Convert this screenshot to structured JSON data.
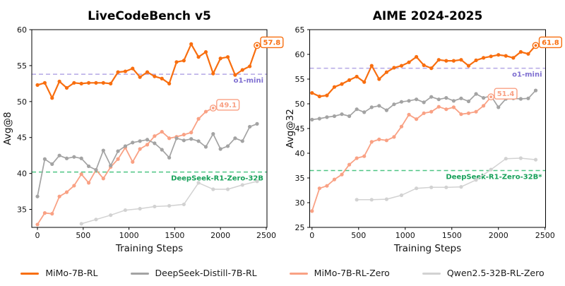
{
  "figure": {
    "background": "#ffffff"
  },
  "legend": {
    "items": [
      {
        "label": "MiMo-7B-RL",
        "color": "#F86E0F"
      },
      {
        "label": "DeepSeek-Distill-7B-RL",
        "color": "#A3A3A3"
      },
      {
        "label": "MiMo-7B-RL-Zero",
        "color": "#F9A184"
      },
      {
        "label": "Qwen2.5-32B-RL-Zero",
        "color": "#D2D2D2"
      }
    ]
  },
  "chart_data": [
    {
      "type": "line",
      "title": "LiveCodeBench v5",
      "xlabel": "Training Steps",
      "ylabel": "Avg@8",
      "xlim": [
        -62,
        2508
      ],
      "ylim": [
        32.5,
        60
      ],
      "xticks": [
        0,
        500,
        1000,
        1500,
        2000,
        2500
      ],
      "yticks": [
        35,
        40,
        45,
        50,
        55,
        60
      ],
      "grid": false,
      "hlines": [
        {
          "label": "o1-mini",
          "value": 53.8,
          "color": "#B4A7E5",
          "label_color": "#7F6FD1"
        },
        {
          "label": "DeepSeek-R1-Zero-32B",
          "value": 40.2,
          "color": "#4EC584",
          "label_color": "#18A15A"
        }
      ],
      "series": [
        {
          "name": "MiMo-7B-RL",
          "color": "#F86E0F",
          "lw": 2.2,
          "end_label": "57.8",
          "x": [
            0,
            80,
            160,
            240,
            320,
            400,
            480,
            560,
            640,
            720,
            800,
            880,
            960,
            1040,
            1120,
            1200,
            1280,
            1360,
            1440,
            1520,
            1600,
            1680,
            1760,
            1840,
            1920,
            2000,
            2080,
            2160,
            2240,
            2320,
            2400
          ],
          "y": [
            52.3,
            52.6,
            50.5,
            52.8,
            51.9,
            52.6,
            52.5,
            52.6,
            52.6,
            52.6,
            52.5,
            54.1,
            54.2,
            54.6,
            53.4,
            54.1,
            53.5,
            53.2,
            52.5,
            55.5,
            55.7,
            58.0,
            56.2,
            56.9,
            53.9,
            56.0,
            56.2,
            53.7,
            54.4,
            54.9,
            57.8
          ]
        },
        {
          "name": "DeepSeek-Distill-7B-RL",
          "color": "#A3A3A3",
          "lw": 1.7,
          "end_label": null,
          "x": [
            0,
            80,
            160,
            240,
            320,
            400,
            480,
            560,
            640,
            720,
            800,
            880,
            960,
            1040,
            1120,
            1200,
            1280,
            1360,
            1440,
            1520,
            1600,
            1680,
            1760,
            1840,
            1920,
            2000,
            2080,
            2160,
            2240,
            2320,
            2400
          ],
          "y": [
            36.8,
            42.0,
            41.3,
            42.5,
            42.1,
            42.3,
            42.1,
            41.0,
            40.5,
            43.2,
            41.1,
            43.1,
            43.8,
            44.3,
            44.5,
            44.7,
            44.2,
            43.3,
            42.2,
            44.9,
            44.6,
            44.8,
            44.5,
            43.7,
            45.5,
            43.4,
            43.8,
            44.9,
            44.5,
            46.5,
            46.9
          ]
        },
        {
          "name": "MiMo-7B-RL-Zero",
          "color": "#F9A184",
          "lw": 1.8,
          "end_label": "49.1",
          "x": [
            0,
            80,
            160,
            240,
            320,
            400,
            480,
            560,
            640,
            720,
            800,
            880,
            960,
            1040,
            1120,
            1200,
            1280,
            1360,
            1440,
            1520,
            1600,
            1680,
            1760,
            1840,
            1920
          ],
          "y": [
            32.9,
            34.5,
            34.4,
            36.8,
            37.4,
            38.3,
            39.9,
            38.7,
            40.5,
            39.3,
            40.9,
            42.0,
            43.6,
            41.6,
            43.4,
            44.0,
            45.2,
            45.8,
            44.9,
            45.1,
            45.4,
            45.7,
            47.6,
            48.6,
            49.1
          ]
        },
        {
          "name": "Qwen2.5-32B-RL-Zero",
          "color": "#D2D2D2",
          "lw": 1.5,
          "end_label": null,
          "x": [
            480,
            640,
            800,
            960,
            1120,
            1280,
            1440,
            1600,
            1760,
            1920,
            2080,
            2240,
            2400
          ],
          "y": [
            33.0,
            33.6,
            34.2,
            34.9,
            35.1,
            35.4,
            35.5,
            35.7,
            38.7,
            37.8,
            37.8,
            38.4,
            38.9
          ]
        }
      ]
    },
    {
      "type": "line",
      "title": "AIME 2024-2025",
      "xlabel": "Training Steps",
      "ylabel": "Avg@32",
      "xlim": [
        -25,
        2506
      ],
      "ylim": [
        25,
        65
      ],
      "xticks": [
        0,
        500,
        1000,
        1500,
        2000,
        2500
      ],
      "yticks": [
        25,
        30,
        35,
        40,
        45,
        50,
        55,
        60,
        65
      ],
      "grid": false,
      "hlines": [
        {
          "label": "o1-mini",
          "value": 57.2,
          "color": "#B4A7E5",
          "label_color": "#7F6FD1"
        },
        {
          "label": "DeepSeek-R1-Zero-32B*",
          "value": 36.5,
          "color": "#4EC584",
          "label_color": "#18A15A"
        }
      ],
      "series": [
        {
          "name": "MiMo-7B-RL",
          "color": "#F86E0F",
          "lw": 2.2,
          "end_label": "61.8",
          "x": [
            0,
            80,
            160,
            240,
            320,
            400,
            480,
            560,
            640,
            720,
            800,
            880,
            960,
            1040,
            1120,
            1200,
            1280,
            1360,
            1440,
            1520,
            1600,
            1680,
            1760,
            1840,
            1920,
            2000,
            2080,
            2160,
            2240,
            2320,
            2400
          ],
          "y": [
            52.2,
            51.5,
            51.7,
            53.4,
            54.0,
            54.8,
            55.5,
            54.4,
            57.7,
            55.0,
            56.4,
            57.3,
            57.7,
            58.4,
            59.5,
            57.8,
            57.2,
            58.9,
            58.7,
            58.7,
            58.9,
            57.7,
            58.8,
            59.3,
            59.6,
            59.9,
            59.7,
            59.3,
            60.5,
            60.1,
            61.8
          ]
        },
        {
          "name": "DeepSeek-Distill-7B-RL",
          "color": "#A3A3A3",
          "lw": 1.7,
          "end_label": null,
          "x": [
            0,
            80,
            160,
            240,
            320,
            400,
            480,
            560,
            640,
            720,
            800,
            880,
            960,
            1040,
            1120,
            1200,
            1280,
            1360,
            1440,
            1520,
            1600,
            1680,
            1760,
            1840,
            1920,
            2000,
            2080,
            2160,
            2240,
            2320,
            2400
          ],
          "y": [
            46.8,
            47.0,
            47.3,
            47.5,
            47.9,
            47.5,
            48.9,
            48.3,
            49.3,
            49.6,
            48.7,
            49.9,
            50.4,
            50.6,
            50.9,
            50.3,
            51.4,
            50.9,
            51.2,
            50.6,
            51.1,
            50.5,
            52.0,
            51.2,
            51.6,
            49.3,
            51.0,
            51.1,
            51.0,
            51.1,
            52.7
          ]
        },
        {
          "name": "MiMo-7B-RL-Zero",
          "color": "#F9A184",
          "lw": 1.8,
          "end_label": "51.4",
          "x": [
            0,
            80,
            160,
            240,
            320,
            400,
            480,
            560,
            640,
            720,
            800,
            880,
            960,
            1040,
            1120,
            1200,
            1280,
            1360,
            1440,
            1520,
            1600,
            1680,
            1760,
            1840,
            1920
          ],
          "y": [
            28.3,
            32.9,
            33.4,
            34.7,
            35.7,
            37.7,
            39.0,
            39.4,
            42.3,
            42.8,
            42.6,
            43.3,
            45.4,
            47.8,
            46.9,
            48.1,
            48.4,
            49.4,
            48.9,
            49.3,
            47.9,
            48.1,
            48.4,
            49.6,
            51.4
          ]
        },
        {
          "name": "Qwen2.5-32B-RL-Zero",
          "color": "#D2D2D2",
          "lw": 1.5,
          "end_label": null,
          "x": [
            480,
            640,
            800,
            960,
            1120,
            1280,
            1440,
            1600,
            1760,
            1920,
            2080,
            2240,
            2400
          ],
          "y": [
            30.6,
            30.6,
            30.7,
            31.5,
            32.9,
            33.1,
            33.1,
            33.2,
            34.6,
            36.7,
            38.9,
            39.0,
            38.7
          ]
        }
      ]
    }
  ]
}
